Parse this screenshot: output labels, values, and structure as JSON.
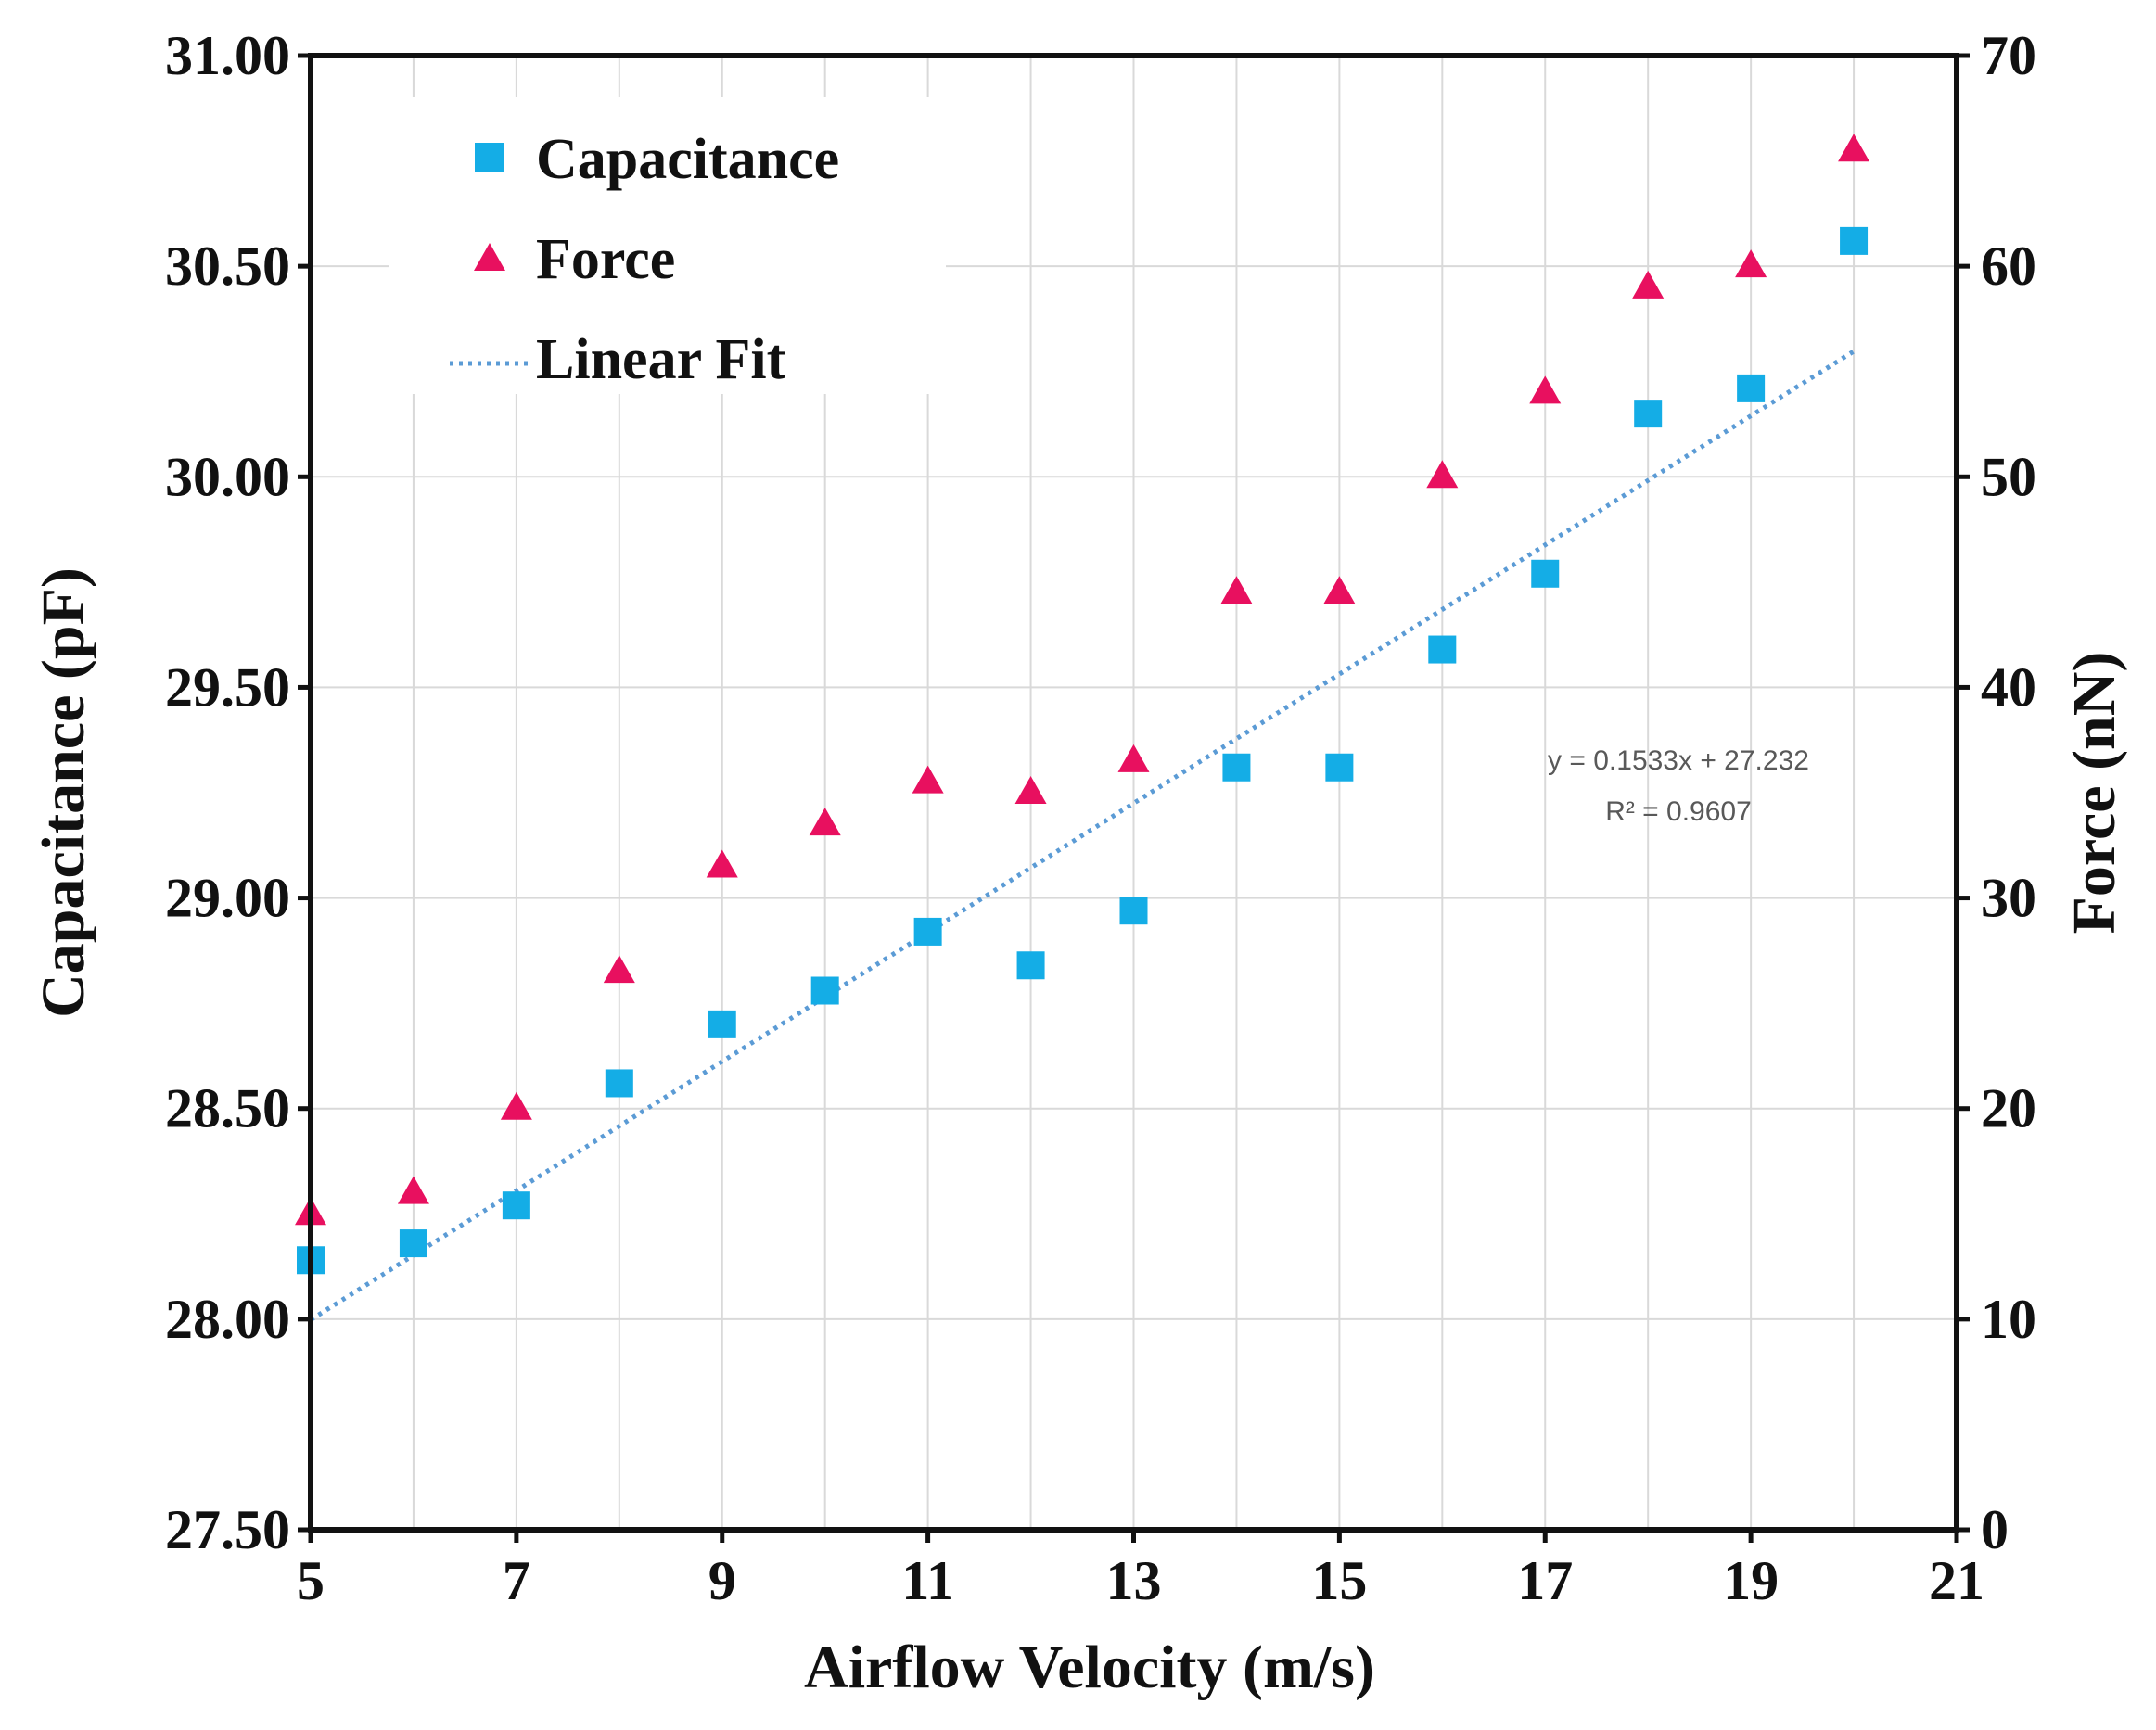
{
  "chart_data": {
    "type": "scatter",
    "title": "",
    "xlabel": "Airflow Velocity (m/s)",
    "ylabel": "Capacitance (pF)",
    "y2label": "Force (nN)",
    "xlim": [
      5,
      21
    ],
    "ylim": [
      27.5,
      31.0
    ],
    "y2lim": [
      0,
      70
    ],
    "grid": true,
    "legend_position": "top-left",
    "x_ticks": [
      "5",
      "7",
      "9",
      "11",
      "13",
      "15",
      "17",
      "19",
      "21"
    ],
    "y_ticks": [
      "27.50",
      "28.00",
      "28.50",
      "29.00",
      "29.50",
      "30.00",
      "30.50",
      "31.00"
    ],
    "y2_ticks": [
      "0",
      "10",
      "20",
      "30",
      "40",
      "50",
      "60",
      "70"
    ],
    "series": [
      {
        "name": "Capacitance",
        "axis": "left",
        "marker": "square",
        "color": "#14ADE6",
        "x": [
          5,
          6,
          7,
          8,
          9,
          10,
          11,
          12,
          13,
          14,
          15,
          16,
          17,
          18,
          19,
          20
        ],
        "values": [
          28.14,
          28.18,
          28.27,
          28.56,
          28.7,
          28.78,
          28.92,
          28.84,
          28.97,
          29.31,
          29.31,
          29.59,
          29.77,
          30.15,
          30.21,
          30.56
        ]
      },
      {
        "name": "Force",
        "axis": "right",
        "marker": "triangle",
        "color": "#E8105F",
        "x": [
          5,
          6,
          7,
          8,
          9,
          10,
          11,
          12,
          13,
          14,
          15,
          16,
          17,
          18,
          19,
          20
        ],
        "values": [
          15,
          16,
          20,
          26.5,
          31.5,
          33.5,
          35.5,
          35,
          36.5,
          44.5,
          44.5,
          50,
          54,
          59,
          60,
          65.5
        ]
      },
      {
        "name": "Linear Fit",
        "axis": "left",
        "style": "dotted",
        "color": "#5B9BD5",
        "slope": 0.1533,
        "intercept": 27.232,
        "x_range": [
          5,
          20
        ]
      }
    ],
    "annotations": [
      "y = 0.1533x + 27.232",
      "R² = 0.9607"
    ]
  }
}
